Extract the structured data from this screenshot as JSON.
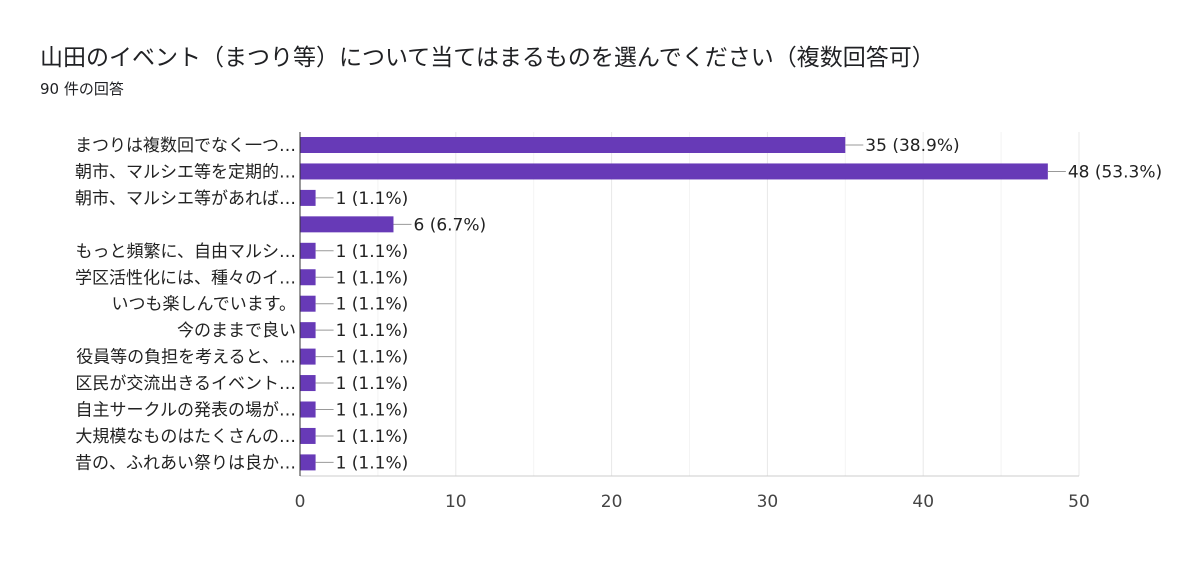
{
  "chart_data": {
    "type": "bar",
    "orientation": "horizontal",
    "title": "山田のイベント（まつり等）について当てはまるものを選んでください（複数回答可）",
    "subtitle": "90 件の回答",
    "categories": [
      "まつりは複数回でなく一つ…",
      "朝市、マルシエ等を定期的…",
      "朝市、マルシエ等があれば…",
      "",
      "もっと頻繁に、自由マルシ…",
      "学区活性化には、種々のイ…",
      "いつも楽しんでいます。",
      "今のままで良い",
      "役員等の負担を考えると、…",
      "区民が交流出きるイベント…",
      "自主サークルの発表の場が…",
      "大規模なものはたくさんの…",
      "昔の、ふれあい祭りは良か…"
    ],
    "values": [
      35,
      48,
      1,
      6,
      1,
      1,
      1,
      1,
      1,
      1,
      1,
      1,
      1
    ],
    "data_labels": [
      "35 (38.9%)",
      "48 (53.3%)",
      "1 (1.1%)",
      "6 (6.7%)",
      "1 (1.1%)",
      "1 (1.1%)",
      "1 (1.1%)",
      "1 (1.1%)",
      "1 (1.1%)",
      "1 (1.1%)",
      "1 (1.1%)",
      "1 (1.1%)",
      "1 (1.1%)"
    ],
    "xlim": [
      0,
      50
    ],
    "xticks": [
      "0",
      "10",
      "20",
      "30",
      "40",
      "50"
    ],
    "grid": true,
    "bar_color": "#673ab7"
  }
}
